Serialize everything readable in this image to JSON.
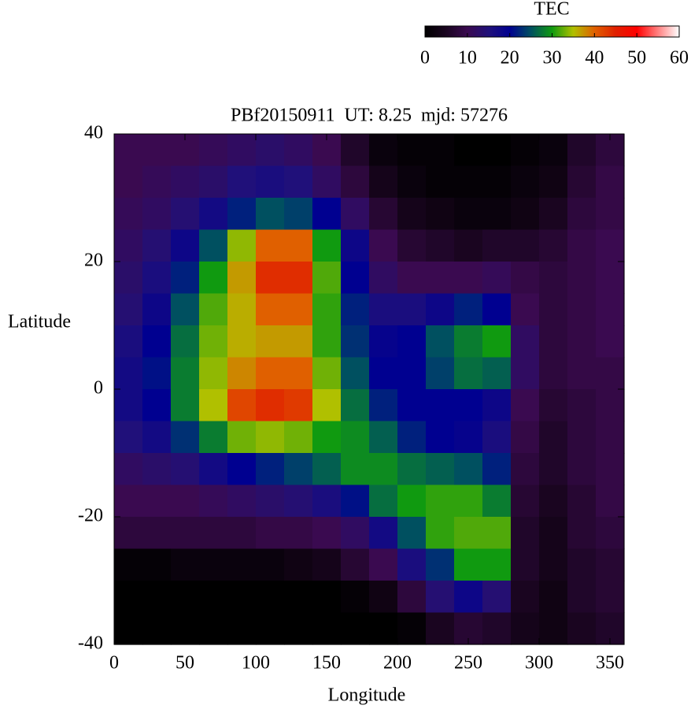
{
  "chart_data": {
    "type": "heatmap",
    "title": "PBf20150911  UT: 8.25  mjd: 57276",
    "xlabel": "Longitude",
    "ylabel": "Latitude",
    "xlim": [
      0,
      360
    ],
    "ylim": [
      -40,
      40
    ],
    "xticks": [
      0,
      50,
      100,
      150,
      200,
      250,
      300,
      350
    ],
    "yticks": [
      -40,
      -20,
      0,
      20,
      40
    ],
    "colorbar_label": "TEC",
    "zlim": [
      0,
      60
    ],
    "zticks": [
      0,
      10,
      20,
      30,
      40,
      50,
      60
    ],
    "colormap": [
      "#000000",
      "#1a0520",
      "#3a0a50",
      "#20107a",
      "#000090",
      "#005060",
      "#109a10",
      "#b0c000",
      "#e06000",
      "#e02000",
      "#ff0000",
      "#ff8080",
      "#ffffff"
    ],
    "z": [
      [
        10,
        10,
        10,
        11,
        12,
        13,
        12,
        10,
        6,
        2,
        1,
        1,
        0,
        0,
        1,
        2,
        6,
        8
      ],
      [
        10,
        11,
        12,
        13,
        15,
        16,
        15,
        12,
        8,
        4,
        2,
        1,
        1,
        1,
        2,
        3,
        7,
        9
      ],
      [
        11,
        12,
        14,
        17,
        22,
        25,
        24,
        20,
        12,
        7,
        4,
        3,
        2,
        2,
        3,
        5,
        8,
        9
      ],
      [
        12,
        14,
        18,
        25,
        34,
        40,
        40,
        30,
        18,
        10,
        7,
        6,
        5,
        6,
        6,
        7,
        9,
        10
      ],
      [
        13,
        16,
        22,
        30,
        37,
        44,
        44,
        32,
        20,
        12,
        10,
        10,
        10,
        11,
        9,
        8,
        9,
        10
      ],
      [
        14,
        18,
        25,
        32,
        36,
        40,
        40,
        31,
        22,
        16,
        16,
        18,
        22,
        20,
        10,
        8,
        9,
        10
      ],
      [
        16,
        20,
        27,
        33,
        36,
        37,
        37,
        31,
        23,
        19,
        20,
        25,
        28,
        30,
        12,
        8,
        9,
        10
      ],
      [
        17,
        21,
        28,
        34,
        38,
        40,
        40,
        33,
        25,
        20,
        20,
        24,
        27,
        26,
        12,
        8,
        9,
        9
      ],
      [
        17,
        20,
        28,
        35,
        42,
        44,
        43,
        35,
        27,
        22,
        20,
        20,
        20,
        18,
        10,
        7,
        8,
        9
      ],
      [
        15,
        17,
        23,
        28,
        33,
        34,
        33,
        30,
        29,
        26,
        22,
        20,
        19,
        16,
        9,
        6,
        8,
        9
      ],
      [
        12,
        13,
        14,
        17,
        20,
        22,
        24,
        26,
        29,
        29,
        27,
        26,
        25,
        22,
        8,
        6,
        8,
        9
      ],
      [
        10,
        10,
        10,
        11,
        12,
        13,
        14,
        16,
        21,
        27,
        30,
        31,
        31,
        28,
        7,
        5,
        7,
        9
      ],
      [
        8,
        8,
        8,
        8,
        8,
        9,
        9,
        10,
        12,
        17,
        25,
        31,
        32,
        32,
        6,
        4,
        7,
        8
      ],
      [
        1,
        1,
        2,
        2,
        2,
        2,
        3,
        4,
        7,
        10,
        16,
        23,
        30,
        30,
        6,
        4,
        6,
        7
      ],
      [
        0,
        0,
        0,
        0,
        0,
        0,
        0,
        0,
        1,
        3,
        8,
        14,
        18,
        14,
        5,
        3,
        6,
        7
      ],
      [
        0,
        0,
        0,
        0,
        0,
        0,
        0,
        0,
        0,
        0,
        1,
        5,
        7,
        6,
        4,
        3,
        5,
        6
      ]
    ]
  }
}
